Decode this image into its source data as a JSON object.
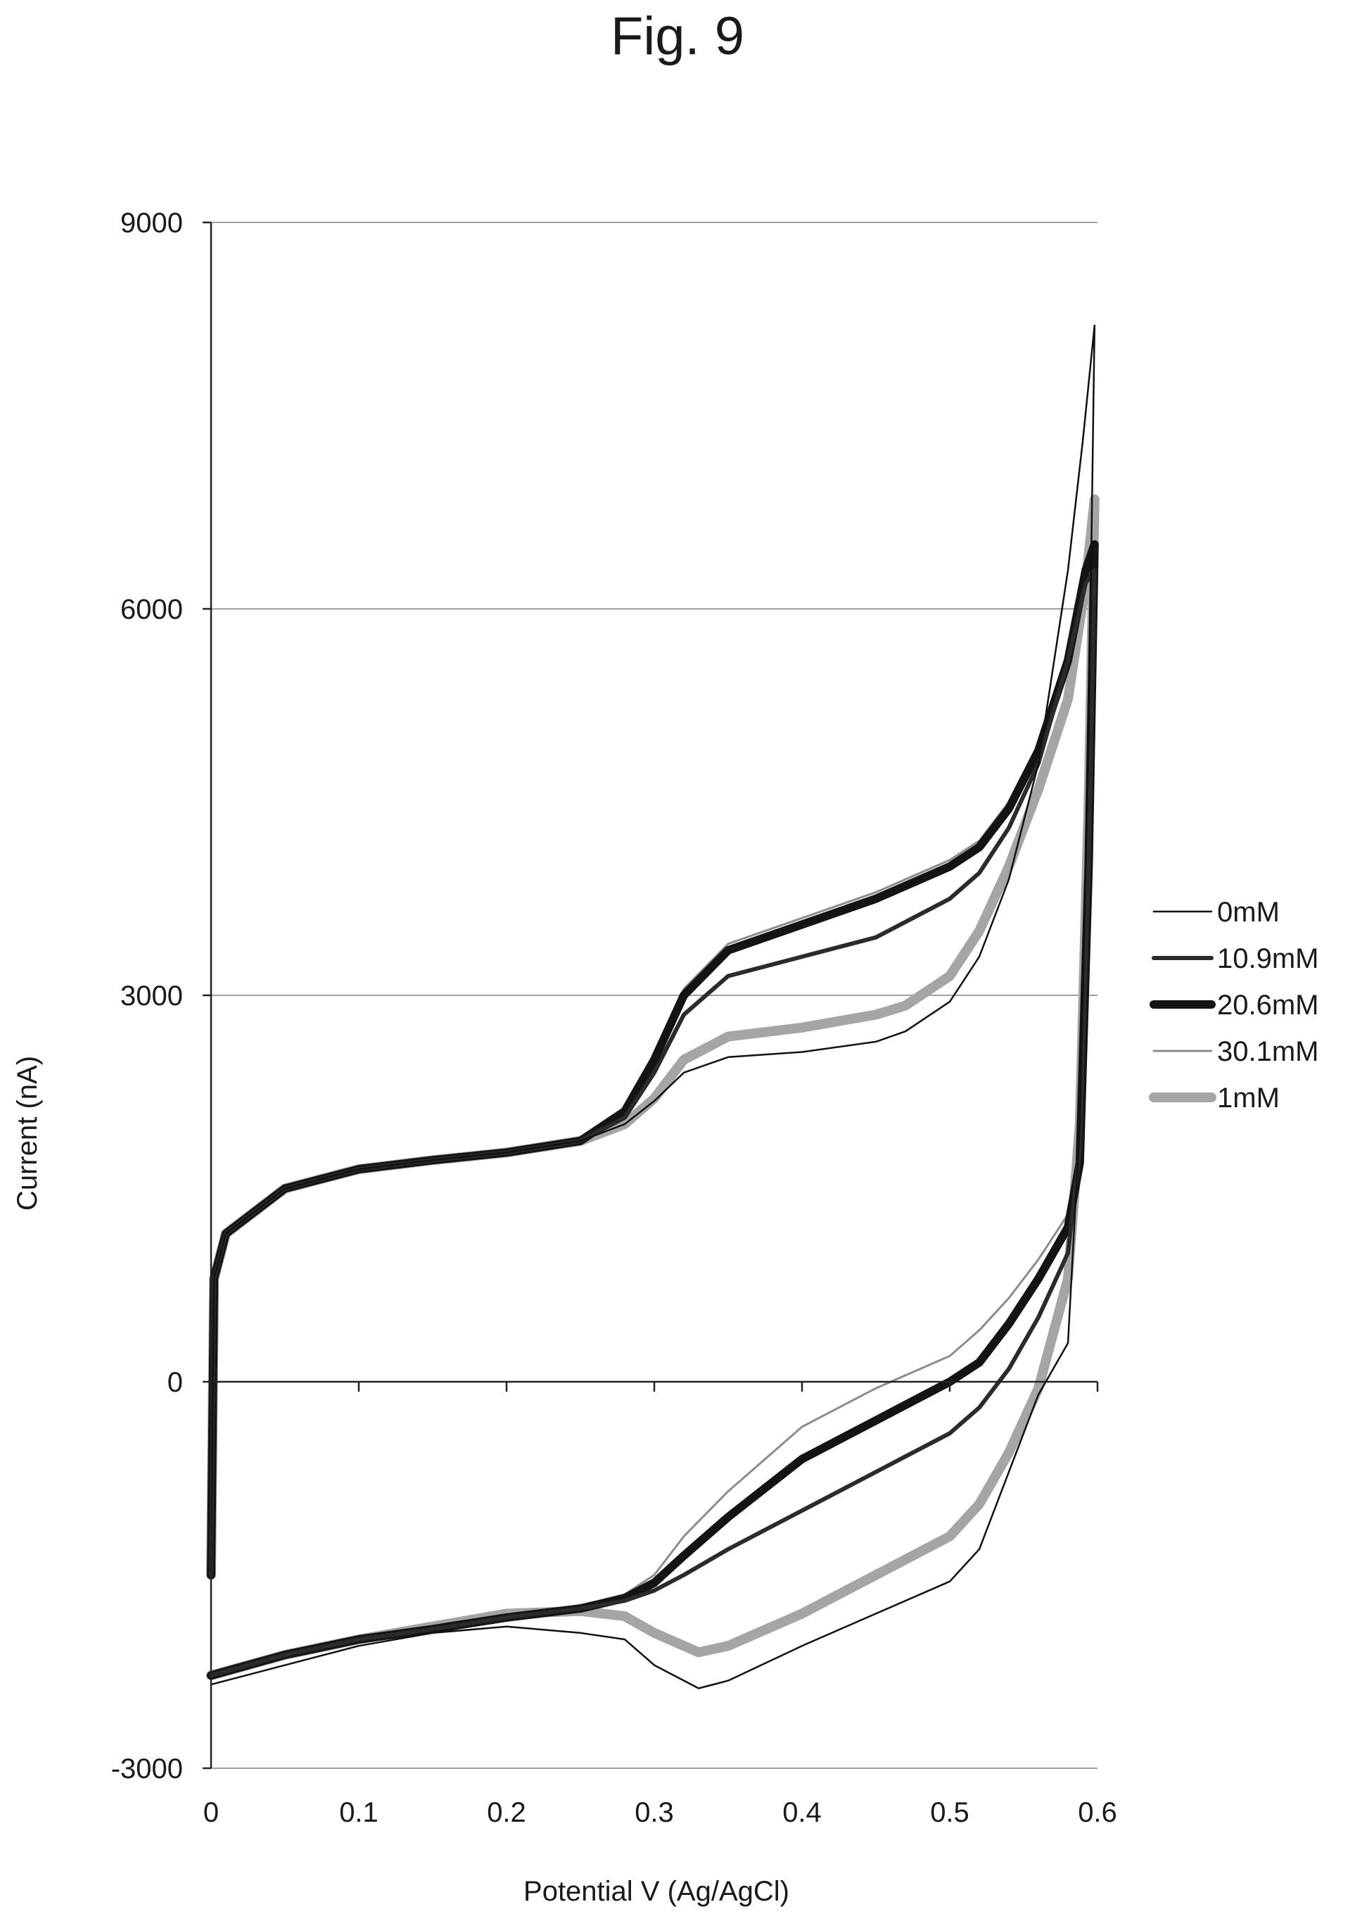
{
  "figure_title": "Fig. 9",
  "chart_data": {
    "type": "line",
    "title": "",
    "xlabel": "Potential V (Ag/AgCl)",
    "ylabel": "Current (nA)",
    "xlim": [
      0,
      0.6
    ],
    "ylim": [
      -3000,
      9000
    ],
    "x_ticks": [
      0,
      0.1,
      0.2,
      0.3,
      0.4,
      0.5,
      0.6
    ],
    "x_tick_labels": [
      "0",
      "0.1",
      "0.2",
      "0.3",
      "0.4",
      "0.5",
      "0.6"
    ],
    "y_ticks": [
      -3000,
      0,
      3000,
      6000,
      9000
    ],
    "y_tick_labels": [
      "-3000",
      "0",
      "3000",
      "6000",
      "9000"
    ],
    "grid": "horizontal",
    "legend_position": "right",
    "series": [
      {
        "name": "0mM",
        "color": "#111111",
        "forward": [
          [
            0,
            -1500
          ],
          [
            0.002,
            800
          ],
          [
            0.01,
            1150
          ],
          [
            0.05,
            1500
          ],
          [
            0.1,
            1650
          ],
          [
            0.15,
            1720
          ],
          [
            0.2,
            1780
          ],
          [
            0.25,
            1870
          ],
          [
            0.28,
            2000
          ],
          [
            0.3,
            2180
          ],
          [
            0.32,
            2400
          ],
          [
            0.35,
            2520
          ],
          [
            0.4,
            2560
          ],
          [
            0.45,
            2640
          ],
          [
            0.47,
            2720
          ],
          [
            0.5,
            2950
          ],
          [
            0.52,
            3300
          ],
          [
            0.54,
            3900
          ],
          [
            0.56,
            4800
          ],
          [
            0.58,
            6300
          ],
          [
            0.59,
            7300
          ],
          [
            0.598,
            8200
          ]
        ],
        "reverse": [
          [
            0.598,
            8200
          ],
          [
            0.594,
            5000
          ],
          [
            0.588,
            2000
          ],
          [
            0.58,
            300
          ],
          [
            0.56,
            -100
          ],
          [
            0.54,
            -700
          ],
          [
            0.52,
            -1300
          ],
          [
            0.5,
            -1550
          ],
          [
            0.45,
            -1800
          ],
          [
            0.4,
            -2050
          ],
          [
            0.35,
            -2320
          ],
          [
            0.33,
            -2380
          ],
          [
            0.3,
            -2200
          ],
          [
            0.28,
            -2000
          ],
          [
            0.25,
            -1950
          ],
          [
            0.2,
            -1900
          ],
          [
            0.15,
            -1950
          ],
          [
            0.1,
            -2050
          ],
          [
            0.05,
            -2200
          ],
          [
            0,
            -2350
          ]
        ]
      },
      {
        "name": "10.9mM",
        "color": "#2b2b2b",
        "forward": [
          [
            0,
            -1500
          ],
          [
            0.002,
            800
          ],
          [
            0.01,
            1150
          ],
          [
            0.05,
            1500
          ],
          [
            0.1,
            1650
          ],
          [
            0.15,
            1720
          ],
          [
            0.2,
            1780
          ],
          [
            0.25,
            1870
          ],
          [
            0.28,
            2050
          ],
          [
            0.3,
            2400
          ],
          [
            0.32,
            2850
          ],
          [
            0.35,
            3150
          ],
          [
            0.4,
            3300
          ],
          [
            0.45,
            3450
          ],
          [
            0.5,
            3750
          ],
          [
            0.52,
            3950
          ],
          [
            0.54,
            4300
          ],
          [
            0.56,
            4800
          ],
          [
            0.58,
            5600
          ],
          [
            0.592,
            6200
          ],
          [
            0.598,
            6300
          ]
        ],
        "reverse": [
          [
            0.598,
            6300
          ],
          [
            0.594,
            4000
          ],
          [
            0.588,
            1800
          ],
          [
            0.58,
            1000
          ],
          [
            0.56,
            500
          ],
          [
            0.54,
            100
          ],
          [
            0.52,
            -200
          ],
          [
            0.5,
            -400
          ],
          [
            0.45,
            -700
          ],
          [
            0.4,
            -1000
          ],
          [
            0.35,
            -1300
          ],
          [
            0.32,
            -1500
          ],
          [
            0.3,
            -1620
          ],
          [
            0.28,
            -1700
          ],
          [
            0.25,
            -1760
          ],
          [
            0.2,
            -1830
          ],
          [
            0.15,
            -1920
          ],
          [
            0.1,
            -2000
          ],
          [
            0.05,
            -2120
          ],
          [
            0,
            -2280
          ]
        ]
      },
      {
        "name": "20.6mM",
        "color": "#141414",
        "forward": [
          [
            0,
            -1500
          ],
          [
            0.002,
            800
          ],
          [
            0.01,
            1150
          ],
          [
            0.05,
            1500
          ],
          [
            0.1,
            1650
          ],
          [
            0.15,
            1720
          ],
          [
            0.2,
            1780
          ],
          [
            0.25,
            1870
          ],
          [
            0.28,
            2100
          ],
          [
            0.3,
            2500
          ],
          [
            0.32,
            3000
          ],
          [
            0.35,
            3350
          ],
          [
            0.4,
            3550
          ],
          [
            0.45,
            3750
          ],
          [
            0.5,
            4000
          ],
          [
            0.52,
            4150
          ],
          [
            0.54,
            4450
          ],
          [
            0.56,
            4900
          ],
          [
            0.58,
            5600
          ],
          [
            0.592,
            6300
          ],
          [
            0.598,
            6500
          ]
        ],
        "reverse": [
          [
            0.598,
            6500
          ],
          [
            0.594,
            4000
          ],
          [
            0.588,
            1700
          ],
          [
            0.58,
            1200
          ],
          [
            0.56,
            800
          ],
          [
            0.54,
            450
          ],
          [
            0.52,
            150
          ],
          [
            0.5,
            0
          ],
          [
            0.45,
            -300
          ],
          [
            0.4,
            -600
          ],
          [
            0.35,
            -1050
          ],
          [
            0.32,
            -1350
          ],
          [
            0.3,
            -1560
          ],
          [
            0.28,
            -1680
          ],
          [
            0.25,
            -1760
          ],
          [
            0.2,
            -1830
          ],
          [
            0.15,
            -1920
          ],
          [
            0.1,
            -2000
          ],
          [
            0.05,
            -2120
          ],
          [
            0,
            -2280
          ]
        ]
      },
      {
        "name": "30.1mM",
        "color": "#8c8c8c",
        "forward": [
          [
            0,
            -1500
          ],
          [
            0.002,
            800
          ],
          [
            0.01,
            1150
          ],
          [
            0.05,
            1500
          ],
          [
            0.1,
            1650
          ],
          [
            0.15,
            1720
          ],
          [
            0.2,
            1780
          ],
          [
            0.25,
            1870
          ],
          [
            0.28,
            2100
          ],
          [
            0.3,
            2550
          ],
          [
            0.32,
            3050
          ],
          [
            0.35,
            3400
          ],
          [
            0.4,
            3600
          ],
          [
            0.45,
            3800
          ],
          [
            0.5,
            4050
          ],
          [
            0.52,
            4200
          ],
          [
            0.54,
            4500
          ],
          [
            0.56,
            4950
          ],
          [
            0.58,
            5650
          ],
          [
            0.592,
            6300
          ],
          [
            0.598,
            6500
          ]
        ],
        "reverse": [
          [
            0.598,
            6500
          ],
          [
            0.594,
            4000
          ],
          [
            0.588,
            1800
          ],
          [
            0.58,
            1300
          ],
          [
            0.56,
            950
          ],
          [
            0.54,
            650
          ],
          [
            0.52,
            400
          ],
          [
            0.5,
            200
          ],
          [
            0.45,
            -50
          ],
          [
            0.4,
            -350
          ],
          [
            0.35,
            -850
          ],
          [
            0.32,
            -1200
          ],
          [
            0.3,
            -1500
          ],
          [
            0.28,
            -1650
          ],
          [
            0.25,
            -1740
          ],
          [
            0.2,
            -1820
          ],
          [
            0.15,
            -1920
          ],
          [
            0.1,
            -2000
          ],
          [
            0.05,
            -2120
          ],
          [
            0,
            -2260
          ]
        ]
      },
      {
        "name": "1mM",
        "color": "#a5a5a5",
        "forward": [
          [
            0,
            -1500
          ],
          [
            0.002,
            800
          ],
          [
            0.01,
            1150
          ],
          [
            0.05,
            1500
          ],
          [
            0.1,
            1650
          ],
          [
            0.15,
            1720
          ],
          [
            0.2,
            1780
          ],
          [
            0.25,
            1870
          ],
          [
            0.28,
            2000
          ],
          [
            0.3,
            2200
          ],
          [
            0.32,
            2500
          ],
          [
            0.35,
            2680
          ],
          [
            0.4,
            2750
          ],
          [
            0.45,
            2850
          ],
          [
            0.47,
            2920
          ],
          [
            0.5,
            3150
          ],
          [
            0.52,
            3500
          ],
          [
            0.54,
            4000
          ],
          [
            0.56,
            4600
          ],
          [
            0.58,
            5300
          ],
          [
            0.592,
            6200
          ],
          [
            0.598,
            6850
          ]
        ],
        "reverse": [
          [
            0.598,
            6850
          ],
          [
            0.594,
            4500
          ],
          [
            0.588,
            2000
          ],
          [
            0.58,
            800
          ],
          [
            0.56,
            -50
          ],
          [
            0.54,
            -550
          ],
          [
            0.52,
            -950
          ],
          [
            0.5,
            -1200
          ],
          [
            0.45,
            -1500
          ],
          [
            0.4,
            -1800
          ],
          [
            0.35,
            -2050
          ],
          [
            0.33,
            -2100
          ],
          [
            0.3,
            -1950
          ],
          [
            0.28,
            -1820
          ],
          [
            0.25,
            -1780
          ],
          [
            0.2,
            -1800
          ],
          [
            0.15,
            -1900
          ],
          [
            0.1,
            -2000
          ],
          [
            0.05,
            -2120
          ],
          [
            0,
            -2280
          ]
        ]
      }
    ]
  }
}
